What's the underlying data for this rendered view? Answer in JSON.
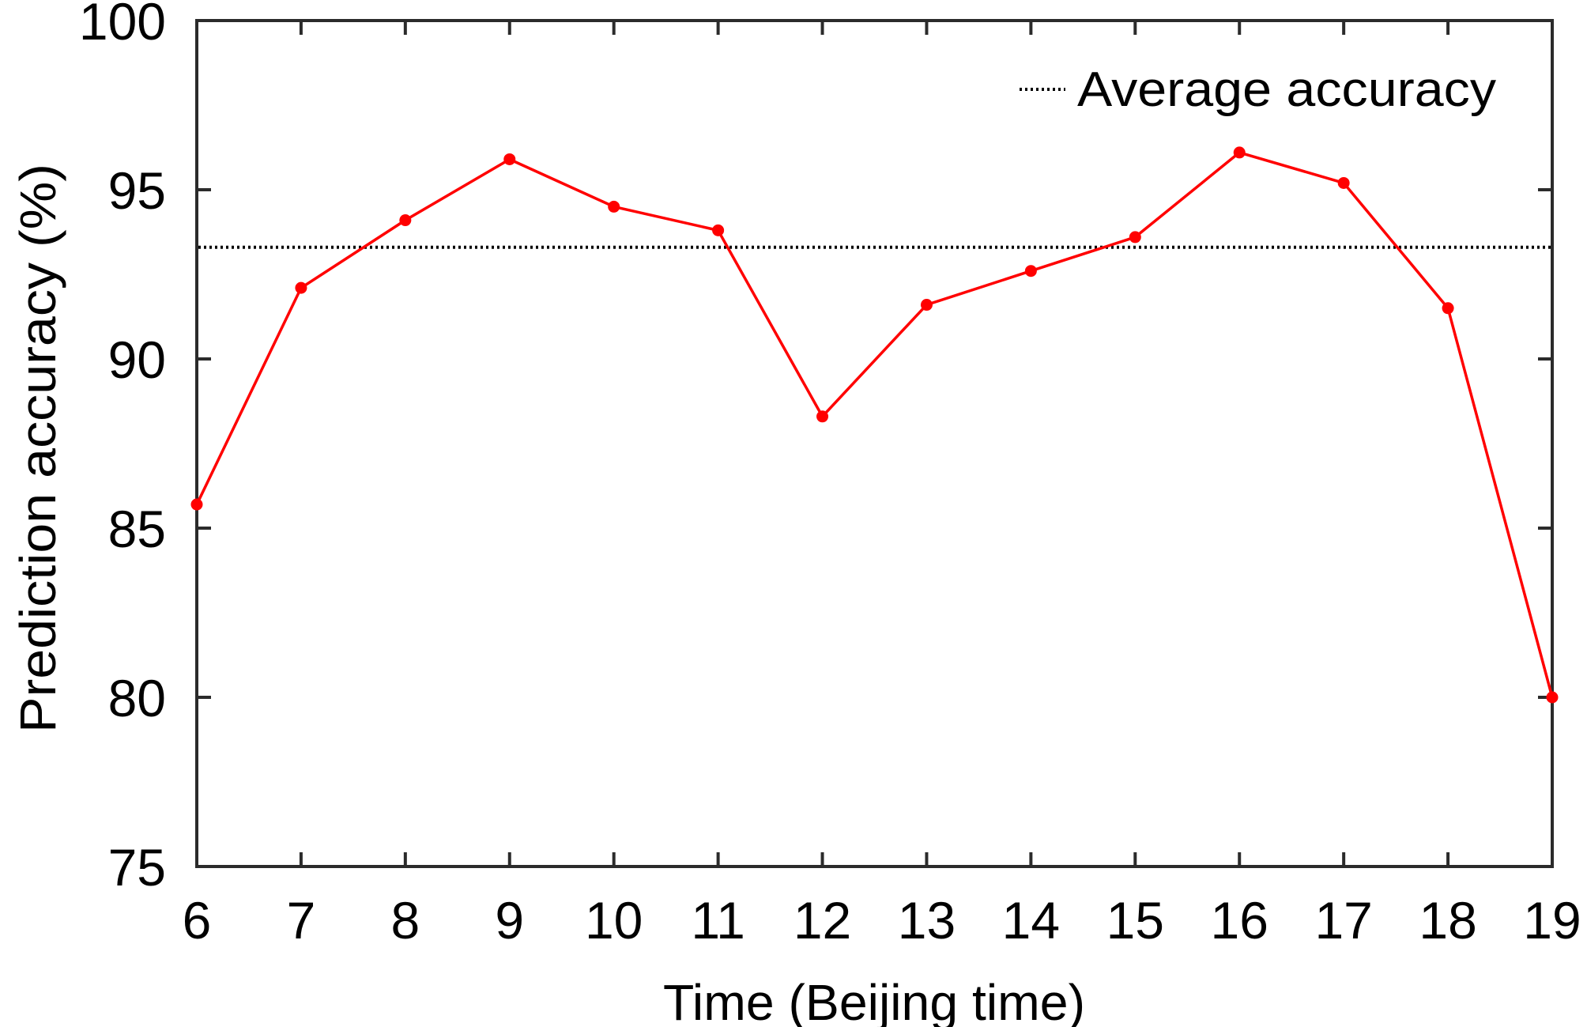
{
  "chart_data": {
    "type": "line",
    "title": "",
    "xlabel": "Time (Beijing time)",
    "ylabel": "Prediction accuracy (%)",
    "xlim": [
      6,
      19
    ],
    "ylim": [
      75,
      100
    ],
    "grid": false,
    "legend_position": "top-right",
    "x_ticks": [
      6,
      7,
      8,
      9,
      10,
      11,
      12,
      13,
      14,
      15,
      16,
      17,
      18,
      19
    ],
    "y_ticks": [
      75,
      80,
      85,
      90,
      95,
      100
    ],
    "x": [
      6,
      7,
      8,
      9,
      10,
      11,
      12,
      13,
      14,
      15,
      16,
      17,
      18,
      19
    ],
    "series": [
      {
        "name": "Prediction accuracy",
        "color": "#ff0000",
        "marker": "circle",
        "values": [
          85.7,
          92.1,
          94.1,
          95.9,
          94.5,
          93.8,
          88.3,
          91.6,
          92.6,
          93.6,
          96.1,
          95.2,
          91.5,
          80.0
        ]
      }
    ],
    "reference_lines": [
      {
        "name": "Average accuracy",
        "orientation": "horizontal",
        "value": 93.3,
        "style": "dotted",
        "color": "#000000"
      }
    ],
    "legend": [
      {
        "label": "Average accuracy",
        "style": "dotted",
        "color": "#000000"
      }
    ]
  },
  "colors": {
    "series": "#ff0000",
    "axis": "#2b2b2b",
    "reference": "#000000"
  }
}
